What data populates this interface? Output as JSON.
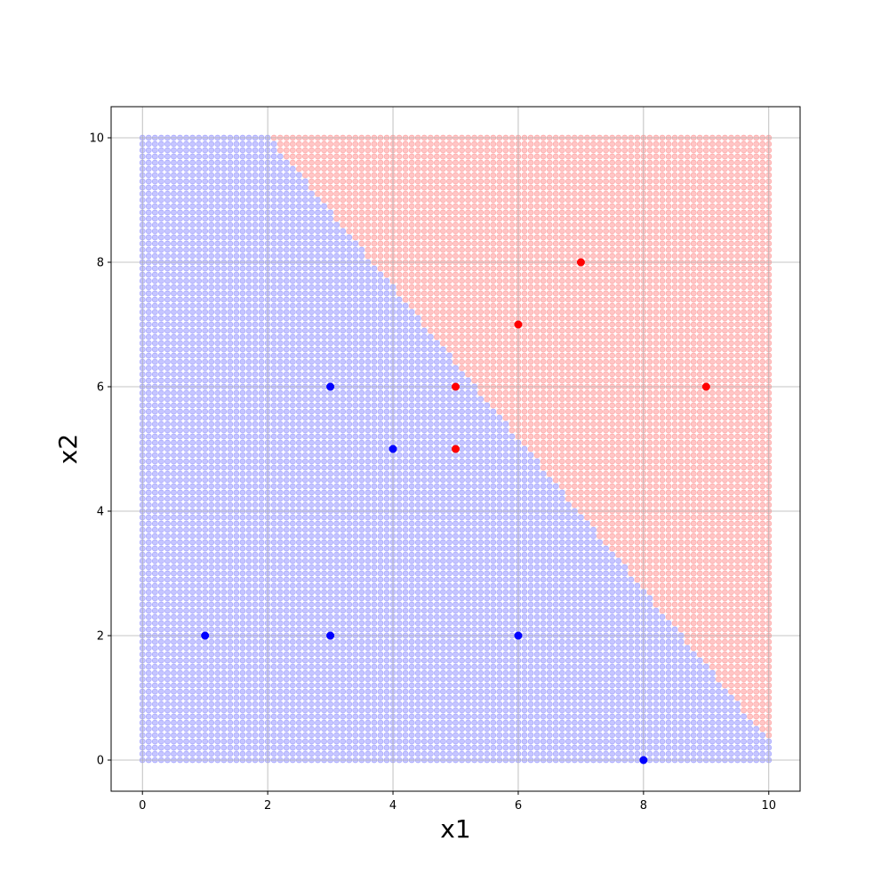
{
  "chart_data": {
    "type": "scatter",
    "title": "",
    "xlabel": "x1",
    "ylabel": "x2",
    "xlim": [
      -0.5,
      10.5
    ],
    "ylim": [
      -0.5,
      10.5
    ],
    "xticks": [
      0,
      2,
      4,
      6,
      8,
      10
    ],
    "yticks": [
      0,
      2,
      4,
      6,
      8,
      10
    ],
    "grid": true,
    "decision_region": {
      "grid_range": [
        0,
        10
      ],
      "grid_step": 0.1,
      "boundary": {
        "x2_at_x1_0": 12.46,
        "slope": -1.215
      },
      "below_class_color": "#0000ff",
      "above_class_color": "#ff0000",
      "marker_alpha": 0.3
    },
    "series": [
      {
        "color": "#0000ff",
        "points": [
          [
            1,
            2
          ],
          [
            3,
            2
          ],
          [
            3,
            6
          ],
          [
            4,
            5
          ],
          [
            6,
            2
          ],
          [
            8,
            0
          ]
        ]
      },
      {
        "color": "#ff0000",
        "points": [
          [
            5,
            5
          ],
          [
            5,
            6
          ],
          [
            6,
            7
          ],
          [
            7,
            8
          ],
          [
            9,
            6
          ]
        ]
      }
    ]
  }
}
